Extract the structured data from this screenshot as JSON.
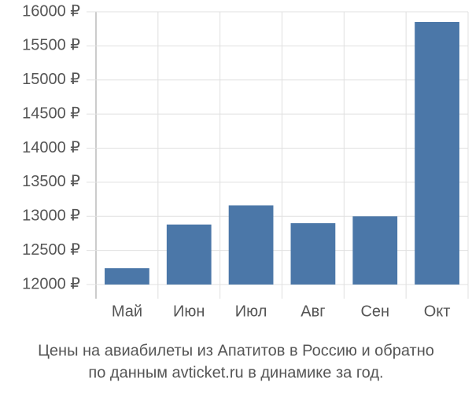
{
  "chart_data": {
    "type": "bar",
    "title": "Цены на авиабилеты из Апатитов в Россию и обратно",
    "subtitle": "по данным avticket.ru в динамике за год.",
    "categories": [
      "Май",
      "Июн",
      "Июл",
      "Авг",
      "Сен",
      "Окт"
    ],
    "values": [
      12240,
      12880,
      13160,
      12900,
      13000,
      15850
    ],
    "color": "#4b77a8",
    "ylim": [
      12000,
      16000
    ],
    "yticks": [
      {
        "value": 12000,
        "label": "12000 ₽"
      },
      {
        "value": 12500,
        "label": "12500 ₽"
      },
      {
        "value": 13000,
        "label": "13000 ₽"
      },
      {
        "value": 13500,
        "label": "13500 ₽"
      },
      {
        "value": 14000,
        "label": "14000 ₽"
      },
      {
        "value": 14500,
        "label": "14500 ₽"
      },
      {
        "value": 15000,
        "label": "15000 ₽"
      },
      {
        "value": 15500,
        "label": "15500 ₽"
      },
      {
        "value": 16000,
        "label": "16000 ₽"
      }
    ],
    "grid": true
  }
}
